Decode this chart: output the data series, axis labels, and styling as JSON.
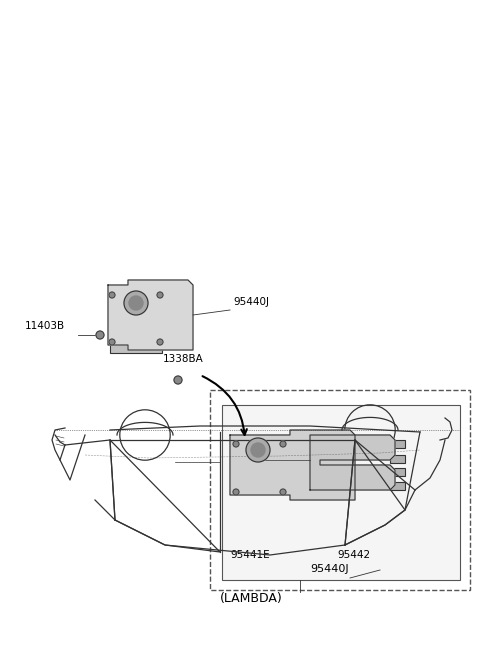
{
  "bg_color": "#ffffff",
  "line_color": "#333333",
  "label_color": "#000000",
  "title": "",
  "labels": {
    "lambda": "(LAMBDA)",
    "part1": "95440J",
    "part2": "95441E",
    "part3": "95442",
    "part4": "95440J",
    "part5": "1338BA",
    "part6": "11403B"
  },
  "figsize": [
    4.8,
    6.57
  ],
  "dpi": 100
}
